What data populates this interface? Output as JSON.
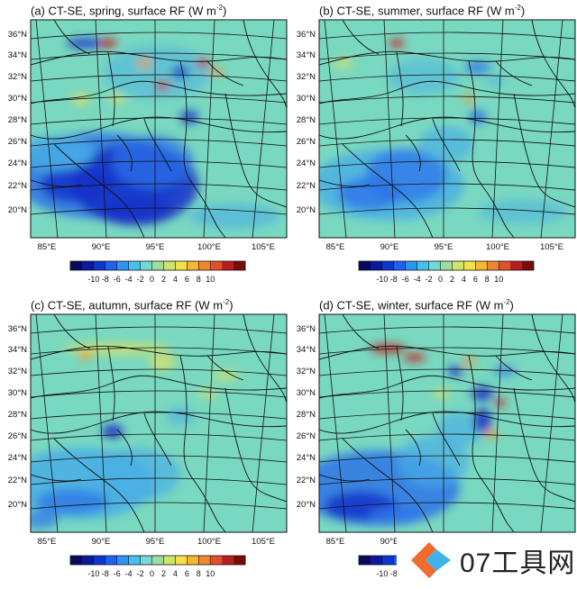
{
  "panels": [
    {
      "id": "a",
      "title": "(a) CT-SE, spring, surface RF (W m",
      "title_sup": "-2",
      "title_end": ")"
    },
    {
      "id": "b",
      "title": "(b) CT-SE, summer, surface RF (W m",
      "title_sup": "-2",
      "title_end": ")"
    },
    {
      "id": "c",
      "title": "(c) CT-SE, autumn, surface RF (W m",
      "title_sup": "-2",
      "title_end": ")"
    },
    {
      "id": "d",
      "title": "(d) CT-SE, winter, surface RF (W m",
      "title_sup": "-2",
      "title_end": ")"
    }
  ],
  "lat_labels": [
    "36°N",
    "34°N",
    "32°N",
    "30°N",
    "28°N",
    "26°N",
    "24°N",
    "22°N",
    "20°N"
  ],
  "lon_labels": [
    "85°E",
    "90°E",
    "95°E",
    "100°E",
    "105°E"
  ],
  "colorbar": {
    "ticks": [
      "-10",
      "-8",
      "-6",
      "-4",
      "-2",
      "0",
      "2",
      "4",
      "6",
      "8",
      "10"
    ],
    "colors": [
      "#08085e",
      "#0a1a9a",
      "#0f36d0",
      "#1e63f0",
      "#2f95f5",
      "#45c1ee",
      "#73d9d2",
      "#9cde9f",
      "#cfe46c",
      "#f5e04a",
      "#f7b733",
      "#f2862a",
      "#e0502a",
      "#b51f1f",
      "#7a0c0c"
    ]
  },
  "map_colors": {
    "background": "#79d8c0",
    "blue_dark": "#1530c8",
    "blue_mid": "#2e74e8",
    "blue_light": "#48aee6",
    "yellow": "#e4e15c",
    "orange": "#ef9a38",
    "red": "#c51d1d"
  },
  "watermark": {
    "text": "07工具网"
  }
}
